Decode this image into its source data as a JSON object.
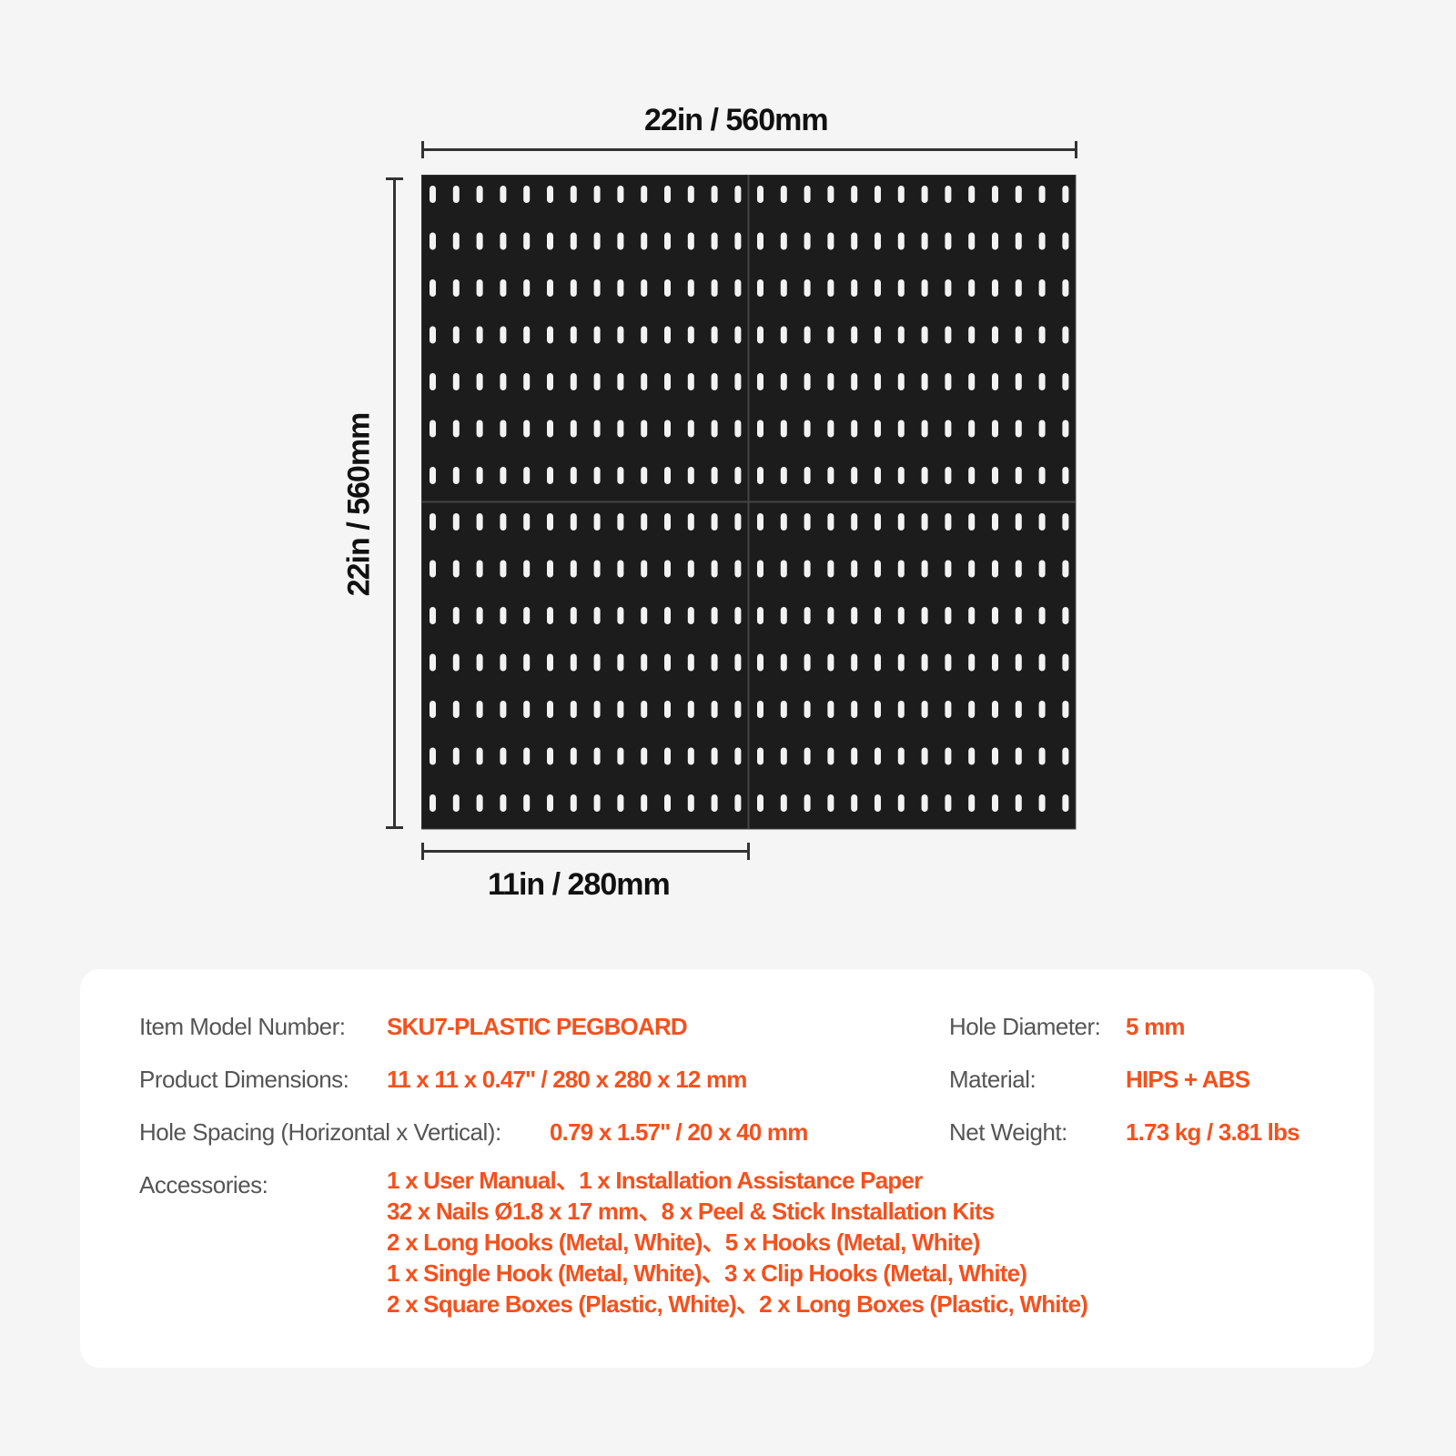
{
  "dimensions": {
    "total_width": "22in / 560mm",
    "total_height": "22in / 560mm",
    "panel_width": "11in / 280mm"
  },
  "pegboard": {
    "panels_across": 2,
    "panels_down": 2,
    "hole_columns_per_panel": 14,
    "hole_rows_per_panel": 7,
    "panel_color": "#1c1c1c"
  },
  "specs": {
    "model_label": "Item Model Number:",
    "model_value": "SKU7-PLASTIC PEGBOARD",
    "dims_label": "Product Dimensions:",
    "dims_value": "11 x 11 x 0.47'' / 280 x 280 x 12 mm",
    "spacing_label": "Hole Spacing (Horizontal x Vertical):",
    "spacing_value": "0.79 x 1.57'' / 20 x 40 mm",
    "hole_label": "Hole Diameter:",
    "hole_value": "5 mm",
    "material_label": "Material:",
    "material_value": "HIPS + ABS",
    "weight_label": "Net Weight:",
    "weight_value": "1.73 kg / 3.81 lbs",
    "accessories_label": "Accessories:",
    "accessories": [
      "1 x User Manual、1 x Installation Assistance Paper",
      "32 x Nails  Ø1.8 x 17 mm、8 x Peel & Stick Installation Kits",
      "2 x Long Hooks (Metal, White)、5 x Hooks (Metal, White)",
      "1 x Single Hook (Metal, White)、3 x Clip Hooks (Metal, White)",
      "2 x Square Boxes (Plastic, White)、2 x Long Boxes (Plastic, White)"
    ]
  },
  "colors": {
    "accent": "#f4511e",
    "label": "#555555"
  }
}
